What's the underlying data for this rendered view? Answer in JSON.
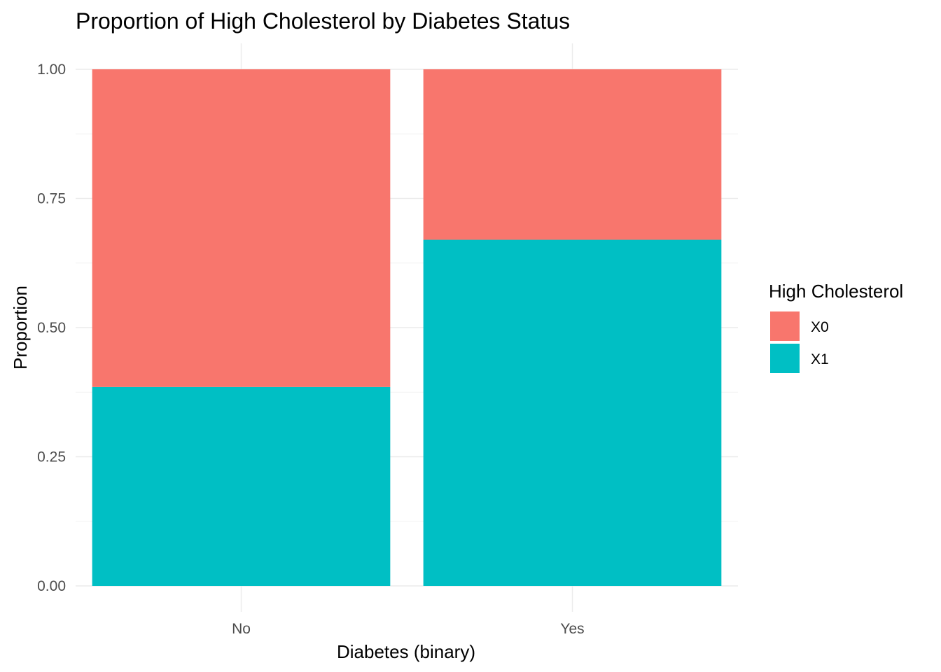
{
  "chart_data": {
    "type": "bar",
    "stacked": true,
    "title": "Proportion of High Cholesterol by Diabetes Status",
    "xlabel": "Diabetes (binary)",
    "ylabel": "Proportion",
    "categories": [
      "No",
      "Yes"
    ],
    "ylim": [
      0,
      1
    ],
    "yticks": [
      "0.00",
      "0.25",
      "0.50",
      "0.75",
      "1.00"
    ],
    "grid": true,
    "legend": {
      "title": "High Cholesterol",
      "placement": "right",
      "entries": [
        "X0",
        "X1"
      ]
    },
    "series": [
      {
        "name": "X0",
        "color": "#F8766D",
        "values": [
          0.615,
          0.33
        ]
      },
      {
        "name": "X1",
        "color": "#00BFC4",
        "values": [
          0.385,
          0.67
        ]
      }
    ]
  }
}
